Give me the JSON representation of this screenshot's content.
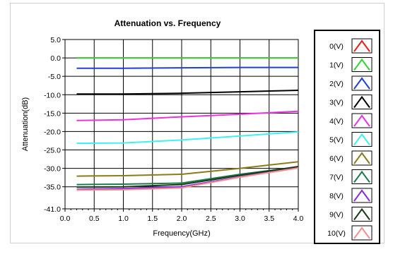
{
  "chart_data": {
    "type": "line",
    "title": "Attenuation vs. Frequency",
    "xlabel": "Frequency(GHz)",
    "ylabel": "Attenuation(dB)",
    "xlim": [
      0,
      4
    ],
    "ylim": [
      -41,
      5
    ],
    "x_ticks": [
      "0.0",
      "0.5",
      "1.0",
      "1.5",
      "2.0",
      "2.5",
      "3.0",
      "3.5",
      "4.0"
    ],
    "y_ticks": [
      "5.0",
      "0.0",
      "-5.0",
      "-10.0",
      "-15.0",
      "-20.0",
      "-25.0",
      "-30.0",
      "-35.0",
      "-41.0"
    ],
    "y_tick_values": [
      5,
      0,
      -5,
      -10,
      -15,
      -20,
      -25,
      -30,
      -35,
      -41
    ],
    "grid": true,
    "legend_position": "right",
    "x": [
      0.2,
      1.0,
      2.0,
      3.0,
      4.0
    ],
    "series": [
      {
        "name": "0(V)",
        "color": "#e8201c",
        "values": [
          0.0,
          0.0,
          0.0,
          0.0,
          0.0
        ]
      },
      {
        "name": "1(V)",
        "color": "#2fd636",
        "values": [
          0.0,
          0.0,
          0.0,
          0.0,
          0.0
        ]
      },
      {
        "name": "2(V)",
        "color": "#1f3fe0",
        "values": [
          -2.8,
          -2.8,
          -2.7,
          -2.6,
          -2.6
        ]
      },
      {
        "name": "3(V)",
        "color": "#000000",
        "values": [
          -9.8,
          -9.8,
          -9.6,
          -9.2,
          -8.8
        ]
      },
      {
        "name": "4(V)",
        "color": "#ee30e4",
        "values": [
          -17.0,
          -16.8,
          -16.0,
          -15.3,
          -14.5
        ]
      },
      {
        "name": "5(V)",
        "color": "#3ff2f2",
        "values": [
          -23.2,
          -23.1,
          -22.3,
          -21.2,
          -20.1
        ]
      },
      {
        "name": "6(V)",
        "color": "#8a7c18",
        "values": [
          -32.1,
          -32.0,
          -31.6,
          -30.0,
          -28.2
        ]
      },
      {
        "name": "7(V)",
        "color": "#1e7a4c",
        "values": [
          -34.4,
          -34.3,
          -34.0,
          -31.6,
          -29.6
        ]
      },
      {
        "name": "8(V)",
        "color": "#8a2be2",
        "values": [
          -35.7,
          -35.5,
          -35.0,
          -32.3,
          -29.6
        ]
      },
      {
        "name": "9(V)",
        "color": "#1a3a1a",
        "values": [
          -35.1,
          -35.0,
          -34.4,
          -31.9,
          -29.5
        ]
      },
      {
        "name": "10(V)",
        "color": "#f29090",
        "values": [
          -35.9,
          -35.8,
          -35.3,
          -32.4,
          -29.9
        ]
      }
    ]
  }
}
